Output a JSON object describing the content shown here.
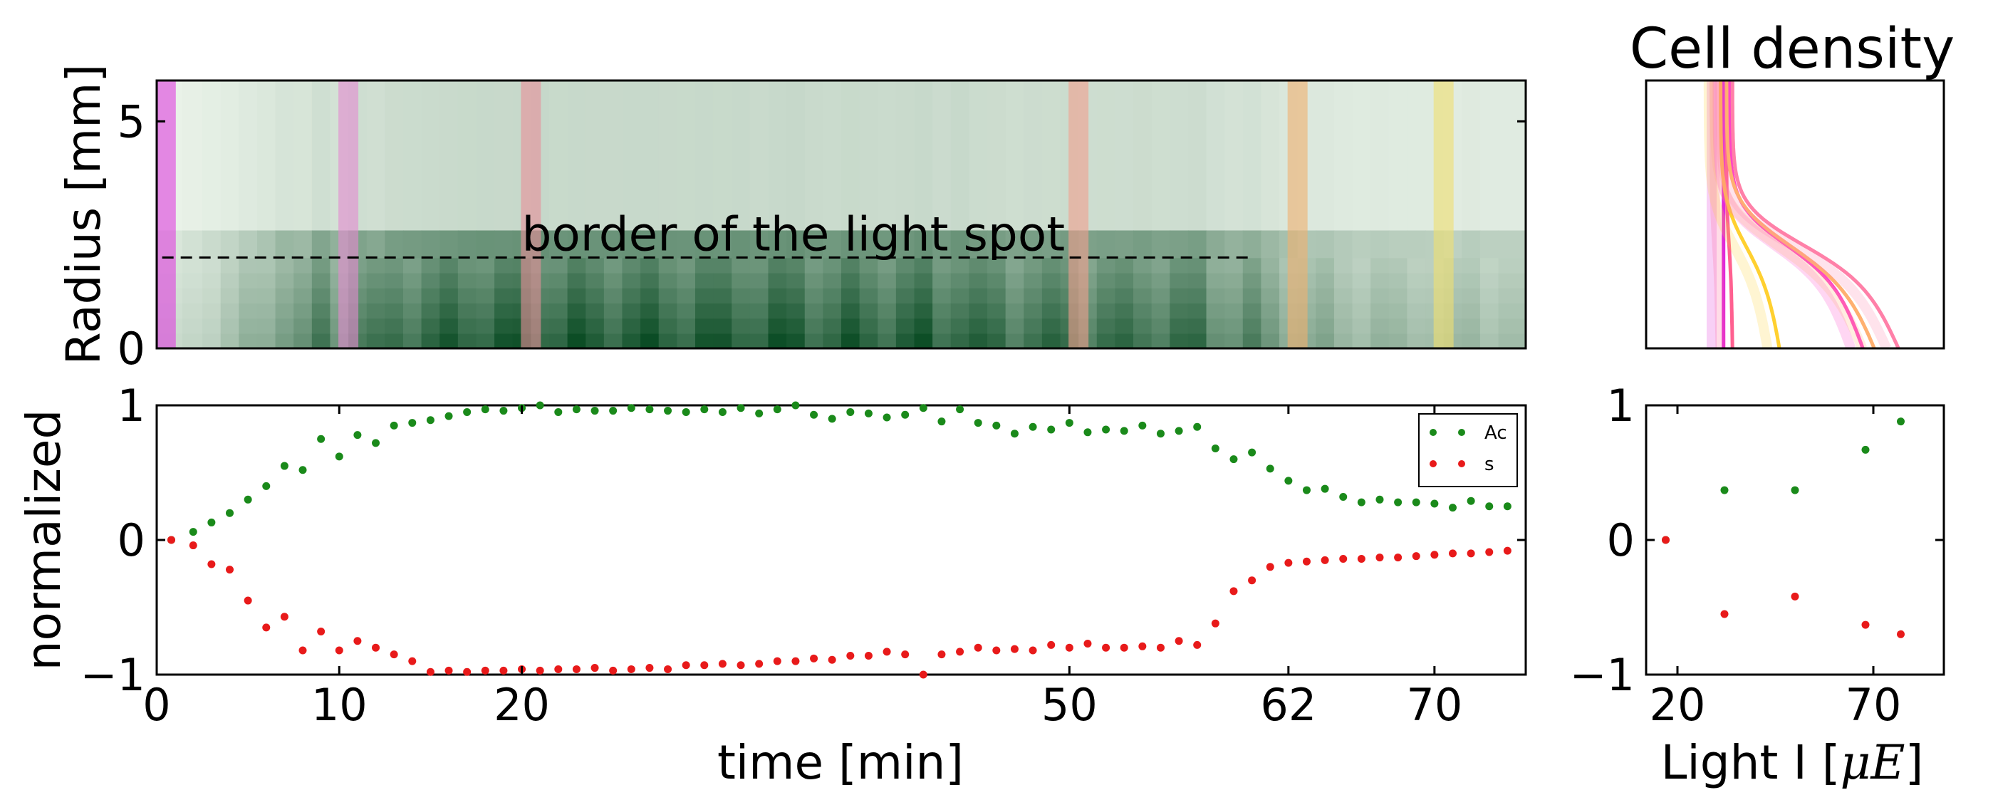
{
  "chart_data": [
    {
      "type": "heatmap",
      "ylabel": "Radius [mm]",
      "yticks": [
        "0",
        "5"
      ],
      "ylim": [
        0,
        5.9
      ],
      "xlim": [
        0,
        75
      ],
      "annotation": "border of the light spot",
      "border_radius_mm": 2,
      "border_x_end_min": 60,
      "light_bands": [
        {
          "x": 0.5,
          "color": "#e040e0"
        },
        {
          "x": 10.5,
          "color": "#e48ad0"
        },
        {
          "x": 20.5,
          "color": "#e8909a"
        },
        {
          "x": 50.5,
          "color": "#f2a090"
        },
        {
          "x": 62.5,
          "color": "#f0b070"
        },
        {
          "x": 70.5,
          "color": "#f0e070"
        }
      ]
    },
    {
      "type": "scatter",
      "title": "",
      "xlabel": "time [min]",
      "ylabel": "normalized",
      "xlim": [
        0,
        75
      ],
      "ylim": [
        -1,
        1
      ],
      "xticks": [
        "0",
        "10",
        "20",
        "50",
        "62",
        "70"
      ],
      "yticks": [
        "1",
        "0",
        "−1"
      ],
      "legend_position": "top-right",
      "series": [
        {
          "name": "Ac",
          "color": "#1a8a1a",
          "x": [
            0.8,
            2,
            3,
            4,
            5,
            6,
            7,
            8,
            9,
            10,
            11,
            12,
            13,
            14,
            15,
            16,
            17,
            18,
            19,
            20,
            21,
            22,
            23,
            24,
            25,
            26,
            27,
            28,
            29,
            30,
            31,
            32,
            33,
            34,
            35,
            36,
            37,
            38,
            39,
            40,
            41,
            42,
            43,
            44,
            45,
            46,
            47,
            48,
            49,
            50,
            51,
            52,
            53,
            54,
            55,
            56,
            57,
            58,
            59,
            60,
            61,
            62,
            63,
            64,
            65,
            66,
            67,
            68,
            69,
            70,
            71,
            72,
            73,
            74
          ],
          "y": [
            0,
            0.06,
            0.13,
            0.2,
            0.3,
            0.4,
            0.55,
            0.52,
            0.75,
            0.62,
            0.78,
            0.72,
            0.85,
            0.87,
            0.89,
            0.92,
            0.95,
            0.97,
            0.96,
            0.98,
            1.0,
            0.95,
            0.97,
            0.96,
            0.96,
            0.98,
            0.97,
            0.96,
            0.95,
            0.97,
            0.95,
            0.98,
            0.94,
            0.97,
            1.0,
            0.93,
            0.9,
            0.95,
            0.94,
            0.91,
            0.93,
            0.98,
            0.88,
            0.97,
            0.87,
            0.85,
            0.79,
            0.84,
            0.82,
            0.87,
            0.8,
            0.82,
            0.81,
            0.85,
            0.79,
            0.81,
            0.84,
            0.68,
            0.6,
            0.65,
            0.53,
            0.44,
            0.37,
            0.38,
            0.32,
            0.28,
            0.3,
            0.28,
            0.28,
            0.27,
            0.24,
            0.29,
            0.25,
            0.25
          ]
        },
        {
          "name": "s",
          "color": "#e81a1a",
          "x": [
            0.8,
            2,
            3,
            4,
            5,
            6,
            7,
            8,
            9,
            10,
            11,
            12,
            13,
            14,
            15,
            16,
            17,
            18,
            19,
            20,
            21,
            22,
            23,
            24,
            25,
            26,
            27,
            28,
            29,
            30,
            31,
            32,
            33,
            34,
            35,
            36,
            37,
            38,
            39,
            40,
            41,
            42,
            43,
            44,
            45,
            46,
            47,
            48,
            49,
            50,
            51,
            52,
            53,
            54,
            55,
            56,
            57,
            58,
            59,
            60,
            61,
            62,
            63,
            64,
            65,
            66,
            67,
            68,
            69,
            70,
            71,
            72,
            73,
            74
          ],
          "y": [
            0,
            -0.04,
            -0.18,
            -0.22,
            -0.45,
            -0.65,
            -0.57,
            -0.82,
            -0.68,
            -0.82,
            -0.75,
            -0.8,
            -0.85,
            -0.9,
            -0.98,
            -0.97,
            -0.98,
            -0.97,
            -0.97,
            -0.96,
            -0.97,
            -0.96,
            -0.96,
            -0.95,
            -0.97,
            -0.96,
            -0.95,
            -0.96,
            -0.93,
            -0.93,
            -0.92,
            -0.93,
            -0.92,
            -0.9,
            -0.9,
            -0.88,
            -0.89,
            -0.86,
            -0.86,
            -0.83,
            -0.85,
            -1.0,
            -0.85,
            -0.83,
            -0.8,
            -0.82,
            -0.81,
            -0.82,
            -0.78,
            -0.8,
            -0.77,
            -0.8,
            -0.8,
            -0.79,
            -0.8,
            -0.75,
            -0.78,
            -0.62,
            -0.38,
            -0.3,
            -0.2,
            -0.17,
            -0.16,
            -0.15,
            -0.14,
            -0.14,
            -0.13,
            -0.13,
            -0.12,
            -0.11,
            -0.1,
            -0.1,
            -0.09,
            -0.08
          ]
        }
      ]
    },
    {
      "type": "line",
      "title": "Cell density",
      "xlim": [
        0,
        100
      ],
      "ylim": [
        0,
        5.9
      ],
      "curve_colors": [
        "#e02ad8",
        "#ff44c8",
        "#ff80a8",
        "#ffb070",
        "#ffd030",
        "#ff6090"
      ]
    },
    {
      "type": "scatter",
      "xlabel": "Light I [$\\mu E$]",
      "xlim": [
        12,
        88
      ],
      "ylim": [
        -1,
        1
      ],
      "xticks": [
        "20",
        "70"
      ],
      "yticks": [
        "1",
        "0",
        "−1"
      ],
      "series": [
        {
          "color": "#1a8a1a",
          "x": [
            17,
            32,
            50,
            68,
            77
          ],
          "y": [
            0,
            0.37,
            0.37,
            0.67,
            0.88
          ]
        },
        {
          "color": "#e81a1a",
          "x": [
            17,
            32,
            50,
            68,
            77
          ],
          "y": [
            0,
            -0.55,
            -0.42,
            -0.63,
            -0.7
          ]
        }
      ]
    }
  ]
}
